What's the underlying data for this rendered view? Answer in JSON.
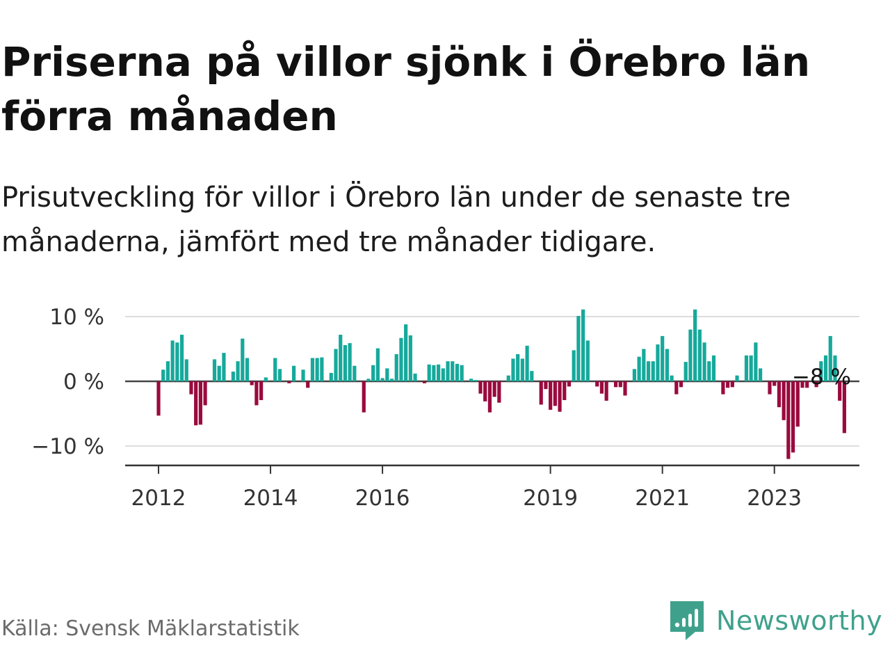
{
  "title": "Priserna på villor sjönk i Örebro län förra månaden",
  "subtitle": "Prisutveckling för villor i Örebro län under de senaste tre månaderna, jämfört med tre månader tidigare.",
  "source": "Källa: Svensk Mäklarstatistik",
  "brand": "Newsworthy",
  "colors": {
    "positive": "#16a99b",
    "negative": "#9a0a3e",
    "grid": "#dddddd",
    "axis": "#333333",
    "brand": "#3fa18c"
  },
  "chart_data": {
    "type": "bar",
    "y_unit": "%",
    "ylim": [
      -13,
      12
    ],
    "y_ticks": [
      10,
      0,
      -10
    ],
    "y_tick_labels": [
      "10 %",
      "0 %",
      "−10 %"
    ],
    "x_ticks": [
      {
        "label": "2012",
        "index": 0
      },
      {
        "label": "2014",
        "index": 24
      },
      {
        "label": "2016",
        "index": 48
      },
      {
        "label": "2019",
        "index": 84
      },
      {
        "label": "2021",
        "index": 108
      },
      {
        "label": "2023",
        "index": 132
      }
    ],
    "annotation": {
      "text": "−8 %",
      "index": 143
    },
    "start": "2012-01",
    "values": [
      -5.3,
      1.8,
      3.1,
      6.3,
      6.0,
      7.2,
      3.4,
      -2.0,
      -6.8,
      -6.7,
      -3.7,
      0.0,
      3.4,
      2.4,
      4.4,
      0.0,
      1.5,
      3.1,
      6.6,
      3.6,
      -0.6,
      -3.7,
      -2.9,
      0.6,
      0.0,
      3.6,
      1.9,
      0.0,
      -0.3,
      2.4,
      0.0,
      1.8,
      -1.0,
      3.6,
      3.6,
      3.7,
      0.0,
      1.3,
      5.0,
      7.2,
      5.6,
      5.9,
      2.4,
      0.0,
      -4.8,
      0.4,
      2.5,
      5.1,
      0.5,
      2.0,
      0.4,
      4.2,
      6.7,
      8.8,
      7.1,
      1.2,
      0.0,
      -0.3,
      2.6,
      2.5,
      2.6,
      2.0,
      3.1,
      3.1,
      2.7,
      2.5,
      0.0,
      0.4,
      0.2,
      -1.9,
      -3.1,
      -4.8,
      -2.4,
      -3.3,
      0.0,
      0.9,
      3.5,
      4.2,
      3.5,
      5.5,
      1.6,
      0.0,
      -3.6,
      -1.2,
      -4.4,
      -3.8,
      -4.7,
      -2.9,
      -0.8,
      4.8,
      10.1,
      11.1,
      6.3,
      0.0,
      -0.8,
      -1.9,
      -3.0,
      0.0,
      -0.9,
      -0.9,
      -2.2,
      0.0,
      1.9,
      3.8,
      5.0,
      3.1,
      3.1,
      5.7,
      7.0,
      5.0,
      0.9,
      -2.0,
      -0.9,
      3.0,
      8.0,
      11.1,
      8.0,
      6.0,
      3.1,
      4.0,
      0.0,
      -2.0,
      -1.0,
      -0.9,
      0.9,
      0.0,
      4.0,
      4.0,
      6.0,
      2.0,
      0.0,
      -2.0,
      -0.7,
      -4.0,
      -6.0,
      -12.0,
      -11.0,
      -7.0,
      -1.0,
      -1.0,
      0.0,
      -0.9,
      3.1,
      4.0,
      7.0,
      4.0,
      -3.0,
      -8.0
    ]
  }
}
